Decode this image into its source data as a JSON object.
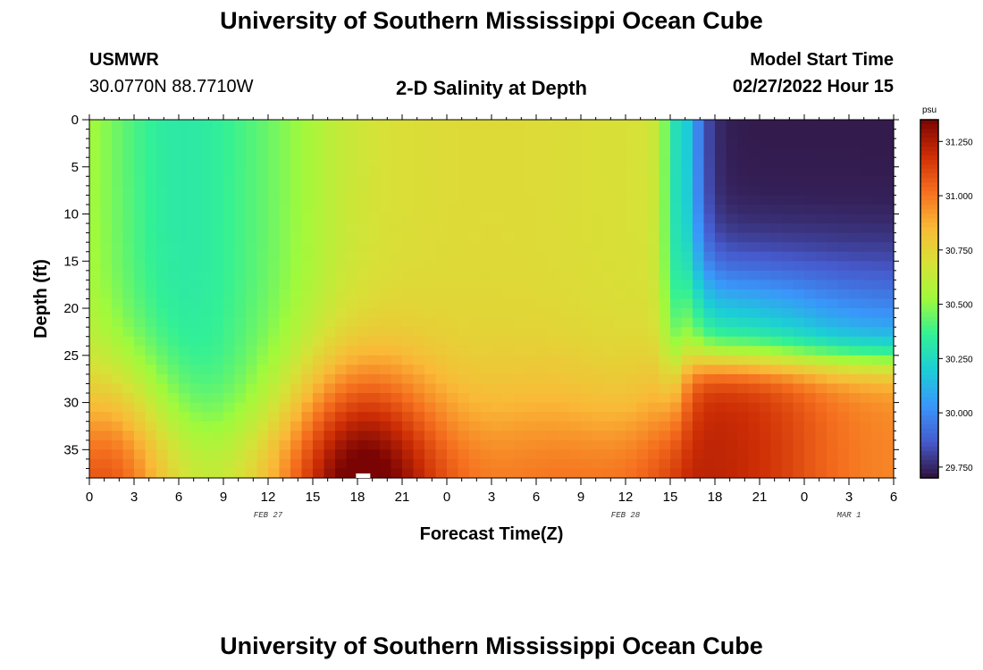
{
  "page": {
    "title_top": "University of Southern Mississippi Ocean Cube",
    "title_bottom": "University of Southern Mississippi Ocean Cube",
    "station_name": "USMWR",
    "station_coords": "30.0770N  88.7710W",
    "chart_title": "2-D Salinity at Depth",
    "model_start_label": "Model Start Time",
    "model_start_value": "02/27/2022 Hour 15"
  },
  "chart_data": {
    "type": "heatmap",
    "title": "2-D Salinity at Depth",
    "xlabel": "Forecast Time(Z)",
    "ylabel": "Depth (ft)",
    "x_hours_range": [
      0,
      54
    ],
    "x_tick_labels": [
      "0",
      "3",
      "6",
      "9",
      "12",
      "15",
      "18",
      "21",
      "0",
      "3",
      "6",
      "9",
      "12",
      "15",
      "18",
      "21",
      "0",
      "3",
      "6"
    ],
    "date_labels": [
      {
        "text": "FEB 27",
        "hour": 12
      },
      {
        "text": "FEB 28",
        "hour": 36
      },
      {
        "text": "MAR 1",
        "hour": 51
      }
    ],
    "y_range": [
      0,
      38
    ],
    "y_tick_labels": [
      "0",
      "5",
      "10",
      "15",
      "20",
      "25",
      "30",
      "35"
    ],
    "colorbar": {
      "unit": "psu",
      "range": [
        29.7,
        31.35
      ],
      "tick_labels": [
        "31.250",
        "31.000",
        "30.750",
        "30.500",
        "30.250",
        "30.000",
        "29.750"
      ]
    },
    "colors": {
      "high": "#7a0403",
      "low": "#30123b"
    }
  }
}
